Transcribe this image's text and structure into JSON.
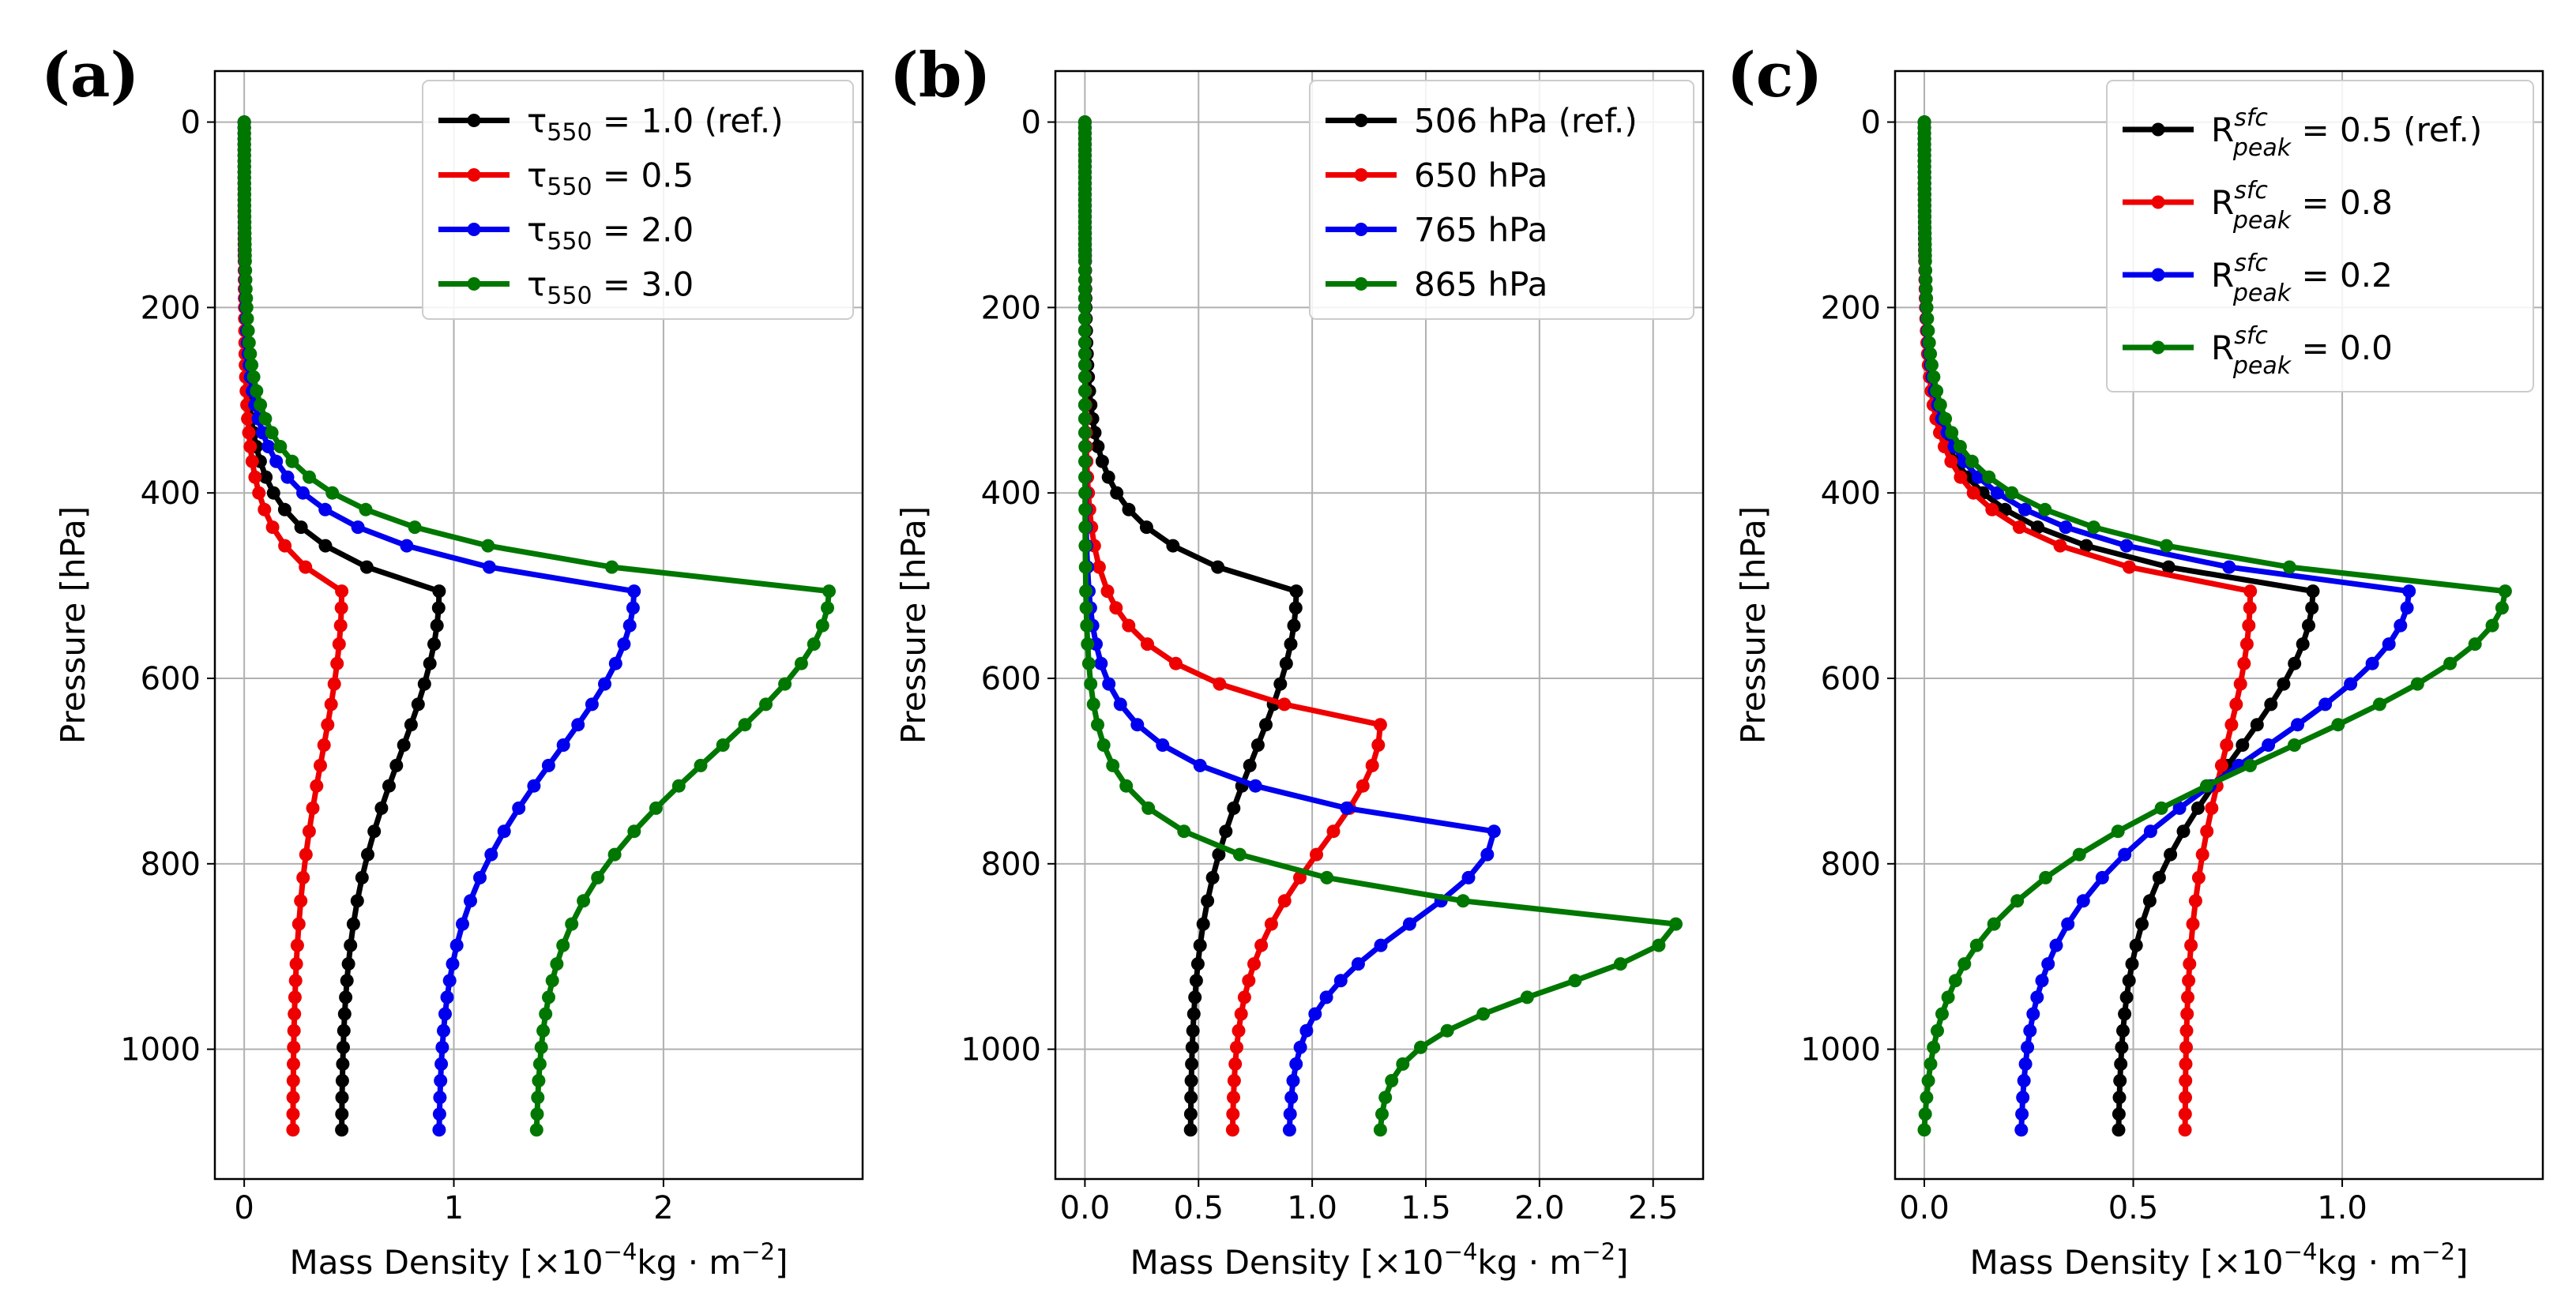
{
  "figure": {
    "xlabel_main": "Mass Density [×10",
    "xlabel_exp1": "−4",
    "xlabel_unit": "kg · m",
    "xlabel_exp2": "−2",
    "xlabel_close": "]",
    "ylabel": "Pressure [hPa]"
  },
  "chart_data": [
    {
      "type": "line",
      "panel_label": "(a)",
      "xlim": [
        -0.14,
        2.95
      ],
      "ylim": [
        1140,
        -55
      ],
      "xticks": [
        0,
        1,
        2
      ],
      "xtick_labels": [
        "0",
        "1",
        "2"
      ],
      "yticks": [
        0,
        200,
        400,
        600,
        800,
        1000
      ],
      "ytick_labels": [
        "0",
        "200",
        "400",
        "600",
        "800",
        "1000"
      ],
      "grid": true,
      "legend_placement": "top-right",
      "series": [
        {
          "name": "τ550 = 1.0 (ref.)",
          "legend_sym": "τ",
          "legend_sub": "550",
          "legend_rest": " = 1.0 (ref.)",
          "color": "#000000",
          "profile": {
            "peak_p": 506,
            "peak_v": 0.93,
            "sfc_ratio": 0.5
          }
        },
        {
          "name": "τ550 = 0.5",
          "legend_sym": "τ",
          "legend_sub": "550",
          "legend_rest": " = 0.5",
          "color": "#ee0000",
          "profile": {
            "peak_p": 506,
            "peak_v": 0.465,
            "sfc_ratio": 0.5
          }
        },
        {
          "name": "τ550 = 2.0",
          "legend_sym": "τ",
          "legend_sub": "550",
          "legend_rest": " = 2.0",
          "color": "#0000ee",
          "profile": {
            "peak_p": 506,
            "peak_v": 1.86,
            "sfc_ratio": 0.5
          }
        },
        {
          "name": "τ550 = 3.0",
          "legend_sym": "τ",
          "legend_sub": "550",
          "legend_rest": " = 3.0",
          "color": "#007700",
          "profile": {
            "peak_p": 506,
            "peak_v": 2.79,
            "sfc_ratio": 0.5
          }
        }
      ]
    },
    {
      "type": "line",
      "panel_label": "(b)",
      "xlim": [
        -0.13,
        2.72
      ],
      "ylim": [
        1140,
        -55
      ],
      "xticks": [
        0,
        0.5,
        1,
        1.5,
        2,
        2.5
      ],
      "xtick_labels": [
        "0.0",
        "0.5",
        "1.0",
        "1.5",
        "2.0",
        "2.5"
      ],
      "yticks": [
        0,
        200,
        400,
        600,
        800,
        1000
      ],
      "ytick_labels": [
        "0",
        "200",
        "400",
        "600",
        "800",
        "1000"
      ],
      "grid": true,
      "legend_placement": "top-right",
      "series": [
        {
          "name": "506 hPa (ref.)",
          "legend_sym": "",
          "legend_sub": "",
          "legend_rest": "506 hPa (ref.)",
          "color": "#000000",
          "profile": {
            "peak_p": 506,
            "peak_v": 0.93,
            "sfc_ratio": 0.5
          }
        },
        {
          "name": "650 hPa",
          "legend_sym": "",
          "legend_sub": "",
          "legend_rest": "650 hPa",
          "color": "#ee0000",
          "profile": {
            "peak_p": 650,
            "peak_v": 1.3,
            "sfc_ratio": 0.5
          }
        },
        {
          "name": "765 hPa",
          "legend_sym": "",
          "legend_sub": "",
          "legend_rest": "765 hPa",
          "color": "#0000ee",
          "profile": {
            "peak_p": 765,
            "peak_v": 1.8,
            "sfc_ratio": 0.5
          }
        },
        {
          "name": "865 hPa",
          "legend_sym": "",
          "legend_sub": "",
          "legend_rest": "865 hPa",
          "color": "#007700",
          "profile": {
            "peak_p": 865,
            "peak_v": 2.6,
            "sfc_ratio": 0.5
          }
        }
      ]
    },
    {
      "type": "line",
      "panel_label": "(c)",
      "xlim": [
        -0.07,
        1.48
      ],
      "ylim": [
        1140,
        -55
      ],
      "xticks": [
        0,
        0.5,
        1
      ],
      "xtick_labels": [
        "0.0",
        "0.5",
        "1.0"
      ],
      "yticks": [
        0,
        200,
        400,
        600,
        800,
        1000
      ],
      "ytick_labels": [
        "0",
        "200",
        "400",
        "600",
        "800",
        "1000"
      ],
      "grid": true,
      "legend_placement": "top-right",
      "series": [
        {
          "name": "R_peak^sfc = 0.5 (ref.)",
          "legend_sym": "R",
          "legend_sub": "peak",
          "legend_sup": "sfc",
          "legend_rest": " = 0.5 (ref.)",
          "color": "#000000",
          "profile": {
            "peak_p": 506,
            "peak_v": 0.93,
            "sfc_ratio": 0.5
          }
        },
        {
          "name": "R_peak^sfc = 0.8",
          "legend_sym": "R",
          "legend_sub": "peak",
          "legend_sup": "sfc",
          "legend_rest": " = 0.8",
          "color": "#ee0000",
          "profile": {
            "peak_p": 506,
            "peak_v": 0.78,
            "sfc_ratio": 0.8
          }
        },
        {
          "name": "R_peak^sfc = 0.2",
          "legend_sym": "R",
          "legend_sub": "peak",
          "legend_sup": "sfc",
          "legend_rest": " = 0.2",
          "color": "#0000ee",
          "profile": {
            "peak_p": 506,
            "peak_v": 1.16,
            "sfc_ratio": 0.2
          }
        },
        {
          "name": "R_peak^sfc = 0.0",
          "legend_sym": "R",
          "legend_sub": "peak",
          "legend_sup": "sfc",
          "legend_rest": " = 0.0",
          "color": "#007700",
          "profile": {
            "peak_p": 506,
            "peak_v": 1.39,
            "sfc_ratio": 0.0
          }
        }
      ]
    }
  ]
}
